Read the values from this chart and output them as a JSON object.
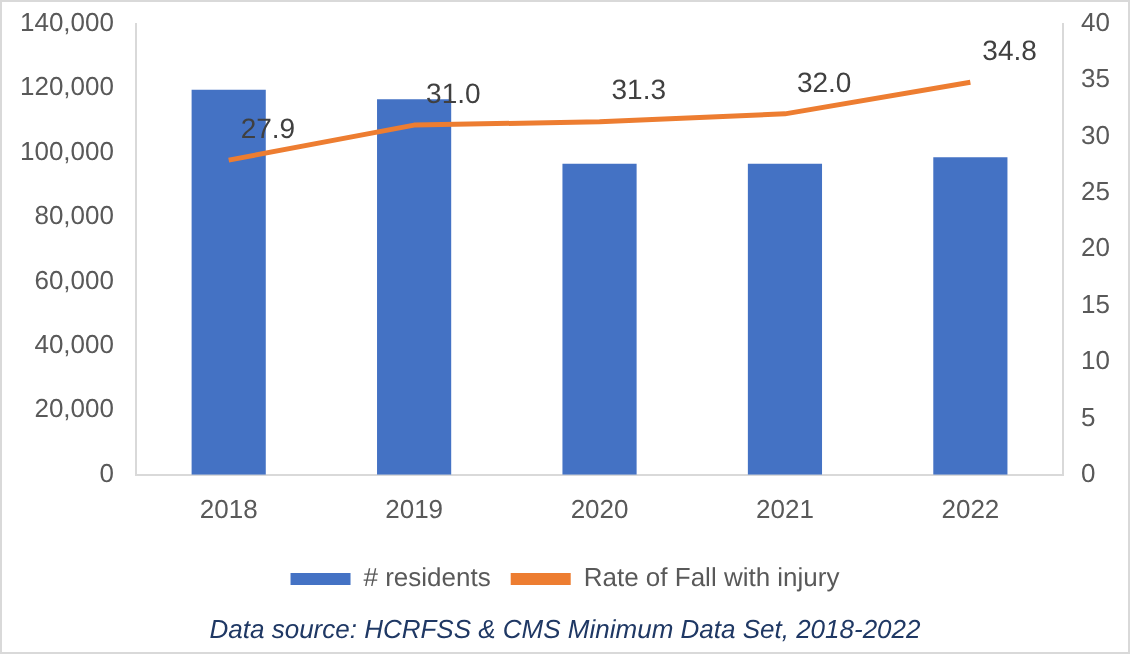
{
  "chart_data": {
    "type": "bar",
    "categories": [
      "2018",
      "2019",
      "2020",
      "2021",
      "2022"
    ],
    "series": [
      {
        "name": "# residents",
        "color": "#4472c4",
        "values": [
          119500,
          116500,
          96500,
          96500,
          98500
        ]
      },
      {
        "name": "Rate of Fall with injury",
        "type": "line",
        "axis": "y2",
        "color": "#ed7d31",
        "marker": "none",
        "values": [
          27.9,
          31.0,
          31.3,
          32.0,
          34.8
        ],
        "value_labels": [
          "27.9",
          "31.0",
          "31.3",
          "32.0",
          "34.8"
        ]
      }
    ],
    "ylim": [
      0,
      140000
    ],
    "yticks": [
      0,
      {
        "value": 20000,
        "label": "20,000"
      },
      {
        "value": 40000,
        "label": "40,000"
      },
      {
        "value": 60000,
        "label": "60,000"
      },
      {
        "value": 80000,
        "label": "80,000"
      },
      {
        "value": 100000,
        "label": "100,000"
      },
      {
        "value": 120000,
        "label": "120,000"
      },
      {
        "value": 140000,
        "label": "140,000"
      }
    ],
    "y2lim": [
      0,
      40
    ],
    "y2ticks": [
      0,
      5,
      10,
      15,
      20,
      25,
      30,
      35,
      40
    ],
    "grid": false,
    "legend": "bottom",
    "annotations": [
      "Data source: HCRFSS & CMS Minimum Data Set, 2018-2022"
    ]
  }
}
